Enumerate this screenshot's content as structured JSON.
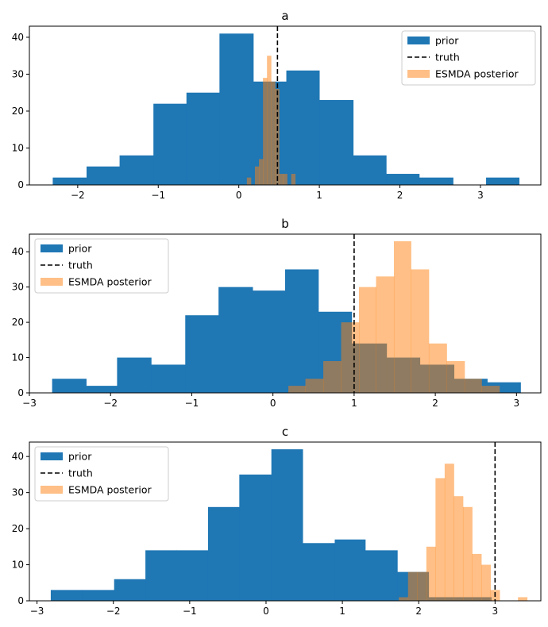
{
  "chart_data": [
    {
      "type": "histogram",
      "title": "a",
      "xlabel": "",
      "ylabel": "",
      "xlim": [
        -2.6,
        3.75
      ],
      "ylim": [
        0,
        43
      ],
      "xticks": [
        -2,
        -1,
        0,
        1,
        2,
        3
      ],
      "yticks": [
        0,
        10,
        20,
        30,
        40
      ],
      "truth": 0.48,
      "legend": {
        "location": "upper right",
        "entries": [
          "prior",
          "truth",
          "ESMDA posterior"
        ]
      },
      "series": [
        {
          "name": "prior",
          "color": "#1f77b4",
          "opacity": 1,
          "edges": [
            -2.31,
            -1.89,
            -1.48,
            -1.06,
            -0.65,
            -0.24,
            0.18,
            0.59,
            1.0,
            1.42,
            1.83,
            2.24,
            2.66,
            3.07,
            3.48
          ],
          "counts": [
            2,
            5,
            8,
            22,
            25,
            41,
            28,
            31,
            23,
            8,
            3,
            2,
            0,
            2
          ]
        },
        {
          "name": "ESMDA posterior",
          "color": "#ff7f0e",
          "opacity": 0.5,
          "edges": [
            0.1,
            0.15,
            0.2,
            0.25,
            0.3,
            0.35,
            0.4,
            0.45,
            0.5,
            0.55,
            0.6,
            0.65,
            0.7
          ],
          "counts": [
            2,
            0,
            5,
            7,
            29,
            35,
            28,
            26,
            3,
            3,
            0,
            3
          ]
        }
      ]
    },
    {
      "type": "histogram",
      "title": "b",
      "xlabel": "",
      "ylabel": "",
      "xlim": [
        -3.0,
        3.3
      ],
      "ylim": [
        0,
        45
      ],
      "xticks": [
        -3,
        -2,
        -1,
        0,
        1,
        2,
        3
      ],
      "yticks": [
        0,
        10,
        20,
        30,
        40
      ],
      "truth": 1.0,
      "legend": {
        "location": "upper left",
        "entries": [
          "prior",
          "truth",
          "ESMDA posterior"
        ]
      },
      "series": [
        {
          "name": "prior",
          "color": "#1f77b4",
          "opacity": 1,
          "edges": [
            -2.72,
            -2.3,
            -1.92,
            -1.5,
            -1.08,
            -0.67,
            -0.25,
            0.15,
            0.56,
            0.97,
            1.4,
            1.81,
            2.23,
            2.64,
            3.05
          ],
          "counts": [
            4,
            2,
            10,
            8,
            22,
            30,
            29,
            35,
            23,
            14,
            10,
            8,
            4,
            3
          ]
        },
        {
          "name": "ESMDA posterior",
          "color": "#ff7f0e",
          "opacity": 0.5,
          "edges": [
            0.19,
            0.4,
            0.62,
            0.84,
            1.06,
            1.27,
            1.49,
            1.7,
            1.92,
            2.14,
            2.36,
            2.57,
            2.79
          ],
          "counts": [
            2,
            4,
            9,
            20,
            30,
            33,
            43,
            35,
            14,
            9,
            4,
            2
          ]
        }
      ]
    },
    {
      "type": "histogram",
      "title": "c",
      "xlabel": "",
      "ylabel": "",
      "xlim": [
        -3.1,
        3.6
      ],
      "ylim": [
        0,
        44
      ],
      "xticks": [
        -3,
        -2,
        -1,
        0,
        1,
        2,
        3
      ],
      "yticks": [
        0,
        10,
        20,
        30,
        40
      ],
      "truth": 3.0,
      "legend": {
        "location": "upper left",
        "entries": [
          "prior",
          "truth",
          "ESMDA posterior"
        ]
      },
      "series": [
        {
          "name": "prior",
          "color": "#1f77b4",
          "opacity": 1,
          "edges": [
            -2.82,
            -2.41,
            -1.99,
            -1.58,
            -1.17,
            -0.76,
            -0.35,
            0.07,
            0.48,
            0.9,
            1.3,
            1.72,
            2.13,
            2.54,
            2.95
          ],
          "counts": [
            3,
            3,
            6,
            14,
            14,
            26,
            35,
            42,
            16,
            17,
            14,
            8,
            1,
            1
          ]
        },
        {
          "name": "ESMDA posterior",
          "color": "#ff7f0e",
          "opacity": 0.5,
          "edges": [
            1.74,
            1.86,
            1.98,
            2.1,
            2.22,
            2.34,
            2.46,
            2.58,
            2.7,
            2.82,
            2.94,
            3.06,
            3.18,
            3.3,
            3.42
          ],
          "counts": [
            1,
            8,
            8,
            15,
            34,
            38,
            29,
            26,
            13,
            10,
            3,
            0,
            0,
            1
          ]
        }
      ]
    }
  ]
}
